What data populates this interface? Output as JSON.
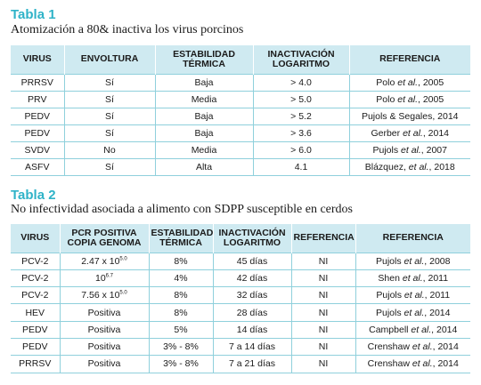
{
  "colors": {
    "accent": "#2fb3c8",
    "header_bg": "#cfeaf1",
    "rule": "#8fd0dc"
  },
  "table1": {
    "title": "Tabla 1",
    "subtitle": "Atomización a 80& inactiva los virus porcinos",
    "headers": [
      "VIRUS",
      "ENVOLTURA",
      "ESTABILIDAD TÉRMICA",
      "INACTIVACIÓN LOGARITMO",
      "REFERENCIA"
    ],
    "rows": [
      {
        "virus": "PRRSV",
        "envoltura": "Sí",
        "estabilidad": "Baja",
        "inactivacion": "> 4.0",
        "ref_author": "Polo ",
        "ref_etal": "et al.",
        "ref_year": ", 2005"
      },
      {
        "virus": "PRV",
        "envoltura": "Sí",
        "estabilidad": "Media",
        "inactivacion": "> 5.0",
        "ref_author": "Polo ",
        "ref_etal": "et al.",
        "ref_year": ", 2005"
      },
      {
        "virus": "PEDV",
        "envoltura": "Sí",
        "estabilidad": "Baja",
        "inactivacion": "> 5.2",
        "ref_author": "Pujols & Segales, 2014",
        "ref_etal": "",
        "ref_year": ""
      },
      {
        "virus": "PEDV",
        "envoltura": "Sí",
        "estabilidad": "Baja",
        "inactivacion": "> 3.6",
        "ref_author": "Gerber ",
        "ref_etal": "et al.",
        "ref_year": ", 2014"
      },
      {
        "virus": "SVDV",
        "envoltura": "No",
        "estabilidad": "Media",
        "inactivacion": "> 6.0",
        "ref_author": "Pujols ",
        "ref_etal": "et al.",
        "ref_year": ", 2007"
      },
      {
        "virus": "ASFV",
        "envoltura": "Sí",
        "estabilidad": "Alta",
        "inactivacion": "4.1",
        "ref_author": "Blázquez, ",
        "ref_etal": "et al.",
        "ref_year": ", 2018"
      }
    ]
  },
  "table2": {
    "title": "Tabla 2",
    "subtitle": "No infectividad asociada a alimento con SDPP susceptible en cerdos",
    "headers": [
      "VIRUS",
      "PCR POSITIVA COPIA GENOMA",
      "ESTABILIDAD TÉRMICA",
      "INACTIVACIÓN LOGARITMO",
      "REFERENCIA",
      "REFERENCIA"
    ],
    "rows": [
      {
        "virus": "PCV-2",
        "pcr_base": "2.47 x 10",
        "pcr_exp": "5.0",
        "estabilidad": "8%",
        "inactivacion": "45 días",
        "ref1": "NI",
        "ref_author": "Pujols ",
        "ref_etal": "et al.",
        "ref_year": ", 2008"
      },
      {
        "virus": "PCV-2",
        "pcr_base": "10",
        "pcr_exp": "6.7",
        "estabilidad": "4%",
        "inactivacion": "42 días",
        "ref1": "NI",
        "ref_author": "Shen ",
        "ref_etal": "et al.",
        "ref_year": ", 2011"
      },
      {
        "virus": "PCV-2",
        "pcr_base": "7.56 x 10",
        "pcr_exp": "5.0",
        "estabilidad": "8%",
        "inactivacion": "32 días",
        "ref1": "NI",
        "ref_author": "Pujols ",
        "ref_etal": "et al.",
        "ref_year": ", 2011"
      },
      {
        "virus": "HEV",
        "pcr_base": "Positiva",
        "pcr_exp": "",
        "estabilidad": "8%",
        "inactivacion": "28 días",
        "ref1": "NI",
        "ref_author": "Pujols ",
        "ref_etal": "et al.",
        "ref_year": ", 2014"
      },
      {
        "virus": "PEDV",
        "pcr_base": "Positiva",
        "pcr_exp": "",
        "estabilidad": "5%",
        "inactivacion": "14 días",
        "ref1": "NI",
        "ref_author": "Campbell ",
        "ref_etal": "et al.",
        "ref_year": ", 2014"
      },
      {
        "virus": "PEDV",
        "pcr_base": "Positiva",
        "pcr_exp": "",
        "estabilidad": "3% - 8%",
        "inactivacion": "7 a 14 días",
        "ref1": "NI",
        "ref_author": "Crenshaw ",
        "ref_etal": "et al.",
        "ref_year": ", 2014"
      },
      {
        "virus": "PRRSV",
        "pcr_base": "Positiva",
        "pcr_exp": "",
        "estabilidad": "3% - 8%",
        "inactivacion": "7 a 21 días",
        "ref1": "NI",
        "ref_author": "Crenshaw ",
        "ref_etal": "et al.",
        "ref_year": ", 2014"
      }
    ]
  }
}
